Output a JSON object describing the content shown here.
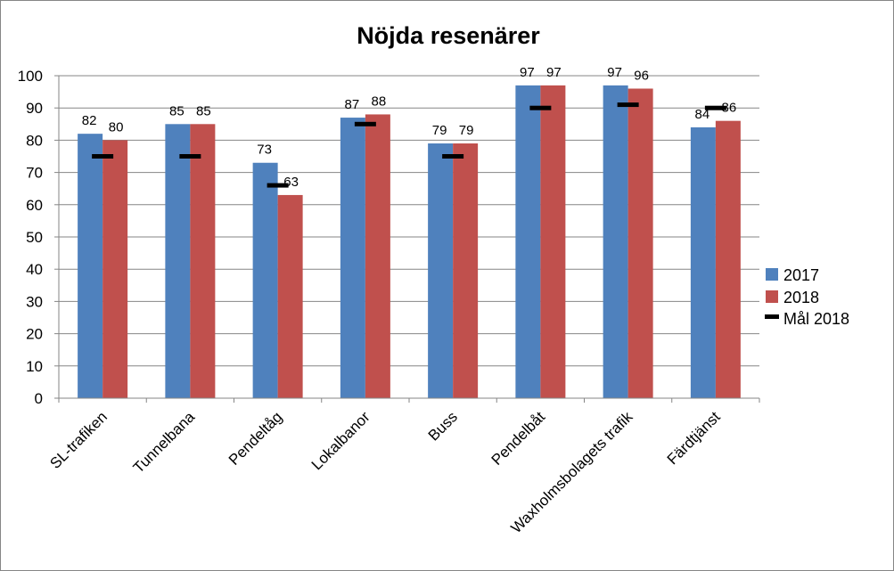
{
  "chart_data": {
    "type": "bar",
    "title": "Nöjda resenärer",
    "categories": [
      "SL-trafiken",
      "Tunnelbana",
      "Pendeltåg",
      "Lokalbanor",
      "Buss",
      "Pendelbåt",
      "Waxholmsbolagets trafik",
      "Färdtjänst"
    ],
    "series": [
      {
        "name": "2017",
        "color": "#4f81bd",
        "values": [
          82,
          85,
          73,
          87,
          79,
          97,
          97,
          84
        ]
      },
      {
        "name": "2018",
        "color": "#c0504d",
        "values": [
          80,
          85,
          63,
          88,
          79,
          97,
          96,
          86
        ]
      }
    ],
    "target": {
      "name": "Mål 2018",
      "color": "#000000",
      "values": [
        75,
        75,
        66,
        85,
        75,
        90,
        91,
        90
      ]
    },
    "ylim": [
      0,
      100
    ],
    "yticks": [
      0,
      10,
      20,
      30,
      40,
      50,
      60,
      70,
      80,
      90,
      100
    ],
    "grid": true,
    "legend": "right"
  }
}
